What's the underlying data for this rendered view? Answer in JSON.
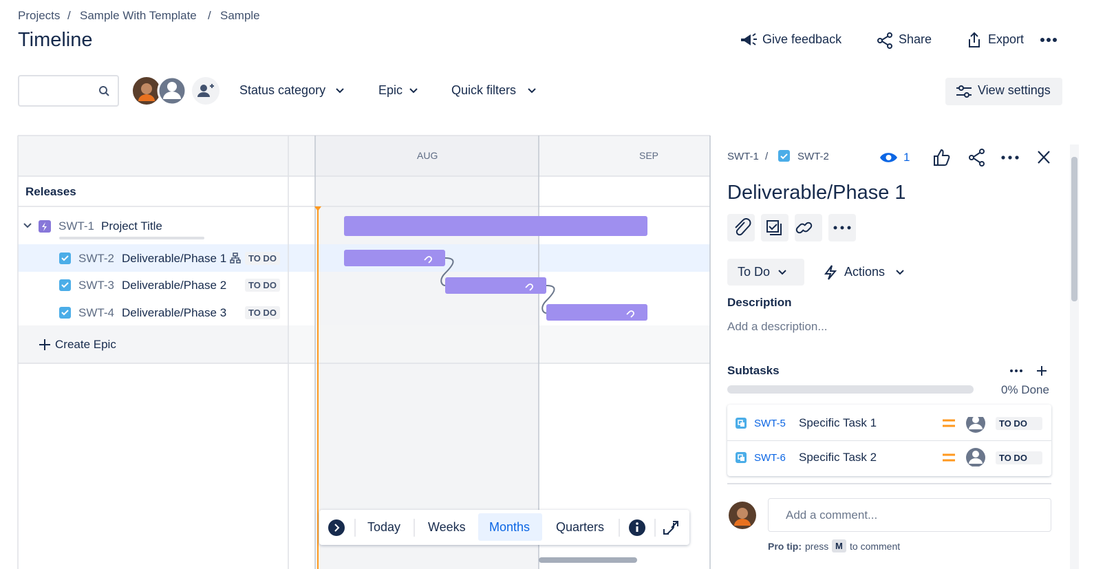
{
  "breadcrumbs": [
    "Projects",
    "Sample With Template",
    "Sample"
  ],
  "title": "Timeline",
  "header_actions": [
    "Give feedback",
    "Share",
    "Export"
  ],
  "filters": [
    "Status category",
    "Epic",
    "Quick filters"
  ],
  "view_settings": "View settings",
  "timeline": {
    "months": [
      "AUG",
      "SEP"
    ],
    "releases": "Releases",
    "epic": {
      "key": "SWT-1",
      "summary": "Project Title"
    },
    "issues": [
      {
        "key": "SWT-2",
        "summary": "Deliverable/Phase 1",
        "status": "TO DO"
      },
      {
        "key": "SWT-3",
        "summary": "Deliverable/Phase 2",
        "status": "TO DO"
      },
      {
        "key": "SWT-4",
        "summary": "Deliverable/Phase 3",
        "status": "TO DO"
      }
    ],
    "create": "Create Epic",
    "view_modes": [
      "Today",
      "Weeks",
      "Months",
      "Quarters"
    ]
  },
  "panel": {
    "breadcrumb": [
      "SWT-1",
      "SWT-2"
    ],
    "watchers": 1,
    "title": "Deliverable/Phase 1",
    "status": "To Do",
    "actions": "Actions",
    "description_label": "Description",
    "description_placeholder": "Add a description...",
    "subtasks_label": "Subtasks",
    "progress": "0% Done",
    "subtasks": [
      {
        "key": "SWT-5",
        "summary": "Specific Task 1",
        "status": "TO DO"
      },
      {
        "key": "SWT-6",
        "summary": "Specific Task 2",
        "status": "TO DO"
      }
    ],
    "comment_placeholder": "Add a comment...",
    "pro_tip": [
      "Pro tip:",
      "press",
      "M",
      "to comment"
    ]
  }
}
